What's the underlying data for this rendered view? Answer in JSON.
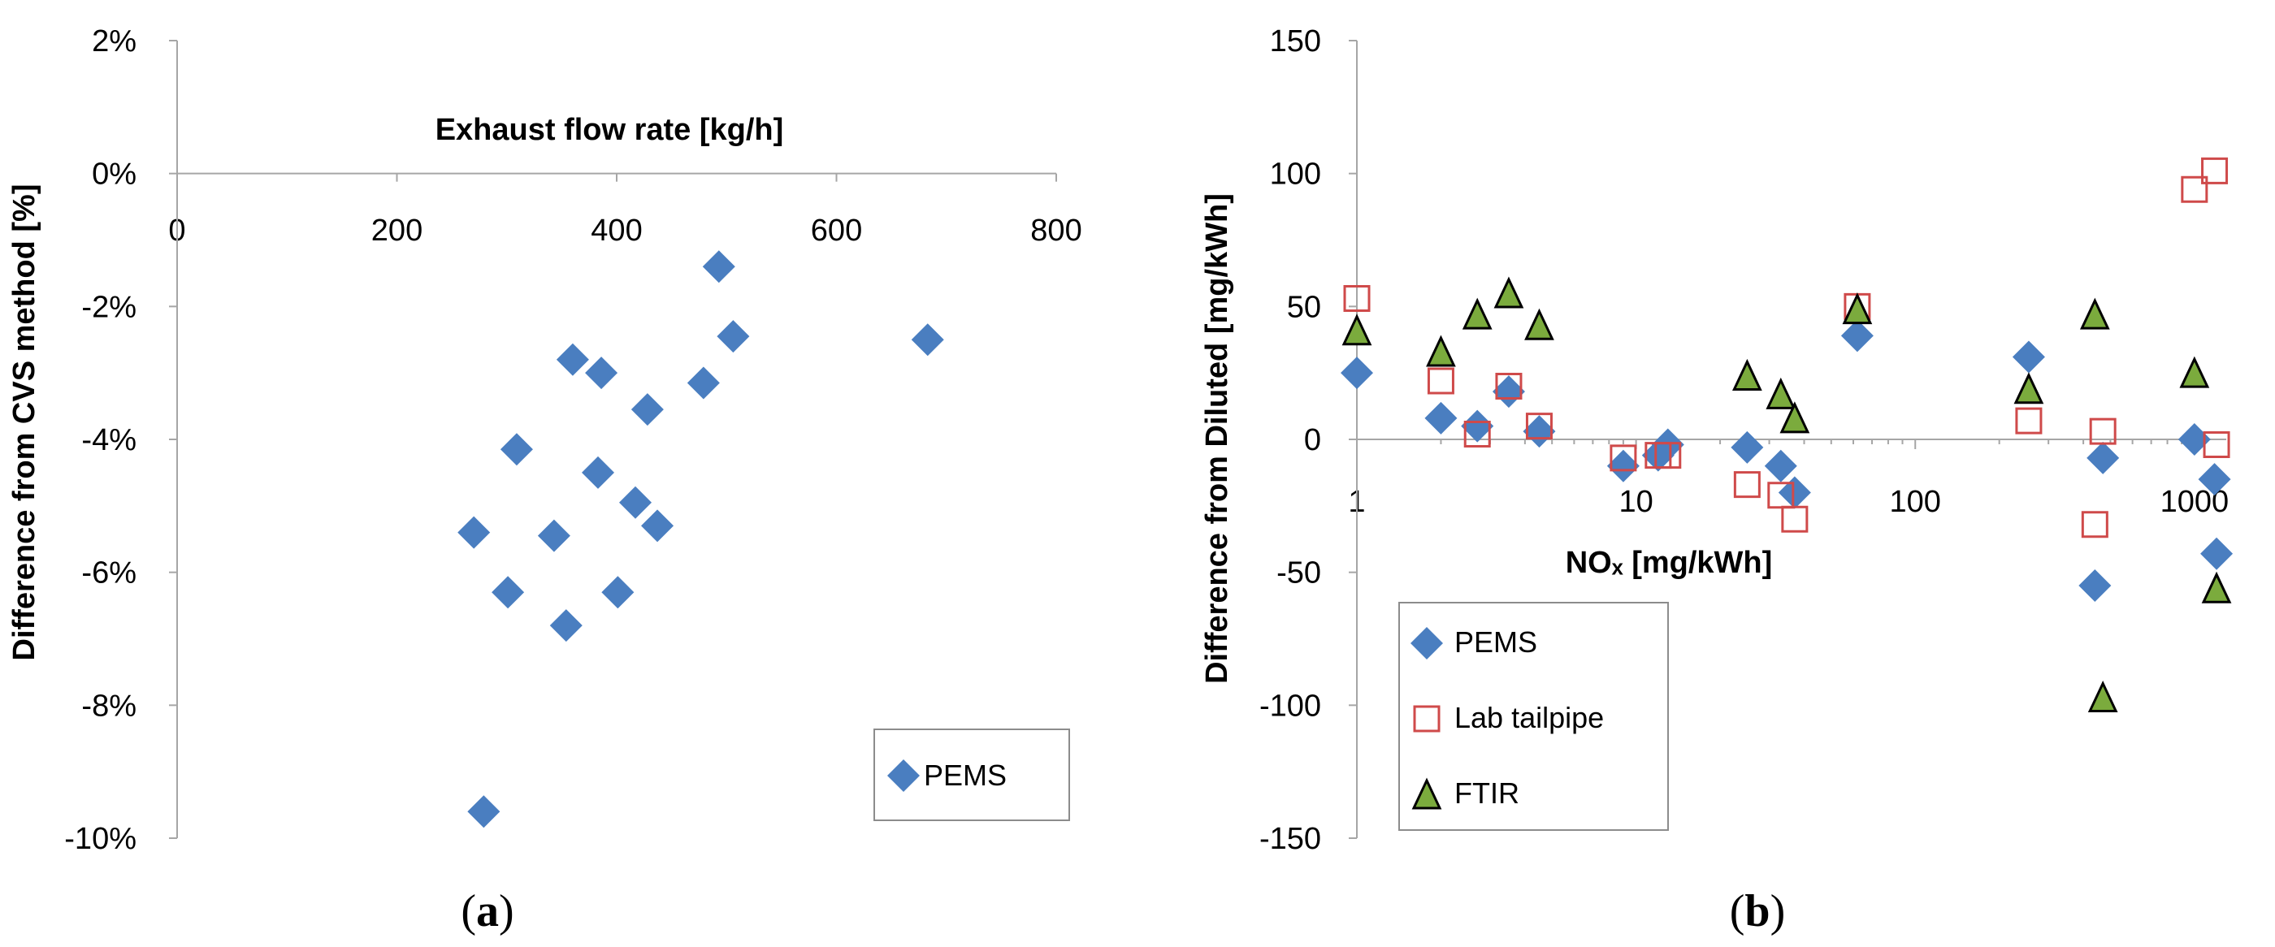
{
  "colors": {
    "pems": "#4a7ec0",
    "lab_tailpipe": "#cf4a4a",
    "ftir": "#7bab3d",
    "axis": "#a6a6a6"
  },
  "chart_data": [
    {
      "id": "a",
      "type": "scatter",
      "panel_label": "a",
      "xlabel": "Exhaust flow rate [kg/h]",
      "ylabel": "Difference from CVS method  [%]",
      "xlim": [
        0,
        800
      ],
      "ylim": [
        -10,
        2
      ],
      "xticks": [
        0,
        200,
        400,
        600,
        800
      ],
      "yticks": [
        2,
        0,
        -2,
        -4,
        -6,
        -8,
        -10
      ],
      "xtick_labels": [
        "0",
        "200",
        "400",
        "600",
        "800"
      ],
      "ytick_labels": [
        "2%",
        "0%",
        "-2%",
        "-4%",
        "-6%",
        "-8%",
        "-10%"
      ],
      "legend": {
        "position": "bottom-right",
        "entries": [
          "PEMS"
        ]
      },
      "series": [
        {
          "name": "PEMS",
          "marker": "diamond",
          "x": [
            493,
            506,
            683,
            360,
            386,
            479,
            428,
            309,
            383,
            417,
            437,
            270,
            343,
            301,
            401,
            354,
            279
          ],
          "y": [
            -1.4,
            -2.45,
            -2.5,
            -2.8,
            -3.0,
            -3.15,
            -3.55,
            -4.15,
            -4.5,
            -4.95,
            -5.3,
            -5.4,
            -5.45,
            -6.3,
            -6.3,
            -6.8,
            -9.6
          ]
        }
      ]
    },
    {
      "id": "b",
      "type": "scatter",
      "panel_label": "b",
      "xlabel": "NOₓ [mg/kWh]",
      "ylabel": "Difference from Diluted  [mg/kWh]",
      "xscale": "log",
      "xlim": [
        1,
        1300
      ],
      "ylim": [
        -150,
        150
      ],
      "xticks": [
        1,
        10,
        100,
        1000
      ],
      "yticks": [
        150,
        100,
        50,
        0,
        -50,
        -100,
        -150
      ],
      "xtick_labels": [
        "1",
        "10",
        "100",
        "1000"
      ],
      "ytick_labels": [
        "150",
        "100",
        "50",
        "0",
        "-50",
        "-100",
        "-150"
      ],
      "legend": {
        "position": "bottom-left",
        "entries": [
          "PEMS",
          "Lab tailpipe",
          "FTIR"
        ]
      },
      "series": [
        {
          "name": "PEMS",
          "marker": "diamond",
          "x": [
            1.0,
            2.0,
            2.7,
            3.5,
            4.5,
            9.0,
            12.0,
            13.0,
            25,
            33,
            37,
            62,
            255,
            440,
            470,
            1000,
            1180,
            1200
          ],
          "y": [
            25,
            8,
            5,
            18,
            3,
            -10,
            -6,
            -2,
            -3,
            -10,
            -20,
            39,
            31,
            -55,
            -7,
            0,
            -15,
            -43
          ]
        },
        {
          "name": "Lab tailpipe",
          "marker": "square",
          "x": [
            1.0,
            2.0,
            2.7,
            3.5,
            4.5,
            9.0,
            12.0,
            13.0,
            25,
            33,
            37,
            62,
            255,
            440,
            470,
            1000,
            1180,
            1200
          ],
          "y": [
            53,
            22,
            2,
            20,
            5,
            -7,
            -6,
            -6,
            -17,
            -21,
            -30,
            50,
            7,
            -32,
            3,
            94,
            101,
            -2
          ]
        },
        {
          "name": "FTIR",
          "marker": "triangle",
          "x": [
            1.0,
            2.0,
            2.7,
            3.5,
            4.5,
            25,
            33,
            37,
            62,
            255,
            440,
            470,
            1000,
            1200
          ],
          "y": [
            41,
            33,
            47,
            55,
            43,
            24,
            17,
            8,
            49,
            19,
            47,
            -97,
            25,
            -56
          ]
        }
      ]
    }
  ]
}
